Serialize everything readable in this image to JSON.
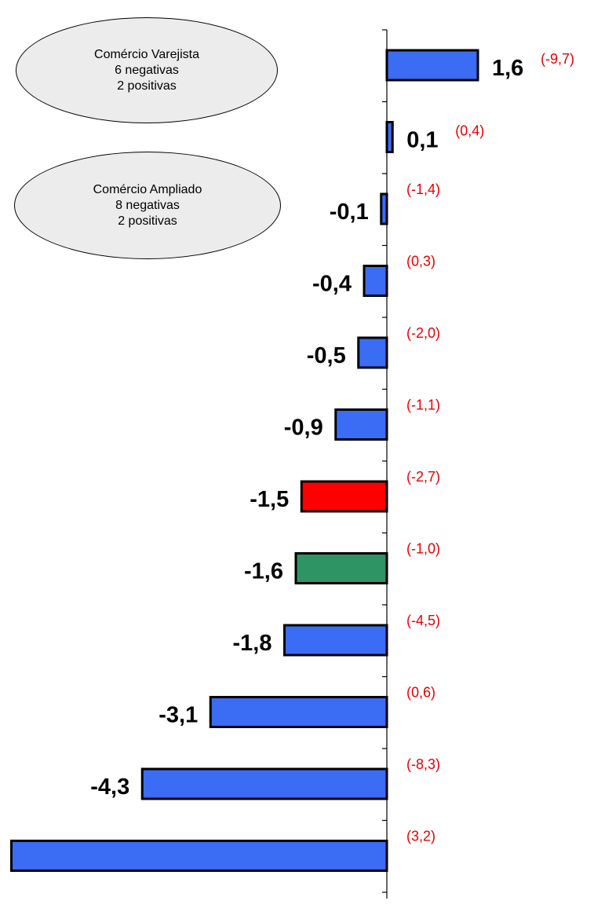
{
  "chart_data": {
    "type": "bar",
    "orientation": "horizontal",
    "values": [
      1.6,
      0.1,
      -0.1,
      -0.4,
      -0.5,
      -0.9,
      -1.5,
      -1.6,
      -1.8,
      -3.1,
      -4.3,
      -6.6
    ],
    "value_labels": [
      "1,6",
      "0,1",
      "-0,1",
      "-0,4",
      "-0,5",
      "-0,9",
      "-1,5",
      "-1,6",
      "-1,8",
      "-3,1",
      "-4,3",
      ""
    ],
    "secondary_labels": [
      "(-9,7)",
      "(0,4)",
      "(-1,4)",
      "(0,3)",
      "(-2,0)",
      "(-1,1)",
      "(-2,7)",
      "(-1,0)",
      "(-4,5)",
      "(0,6)",
      "(-8,3)",
      "(3,2)"
    ],
    "bar_colors": [
      "#3a6cf4",
      "#3a6cf4",
      "#3a6cf4",
      "#3a6cf4",
      "#3a6cf4",
      "#3a6cf4",
      "#ff0000",
      "#2e9464",
      "#3a6cf4",
      "#3a6cf4",
      "#3a6cf4",
      "#3a6cf4"
    ],
    "colors": {
      "default": "#3a6cf4",
      "highlight_red": "#ff0000",
      "highlight_green": "#2e9464",
      "secondary_label": "#e60000"
    },
    "xlim": [
      -6.6,
      2.2
    ],
    "grid": false,
    "annotations": [
      {
        "lines": [
          "Comércio Varejista",
          "6 negativas",
          "2 positivas"
        ]
      },
      {
        "lines": [
          "Comércio Ampliado",
          "8 negativas",
          "2 positivas"
        ]
      }
    ]
  }
}
